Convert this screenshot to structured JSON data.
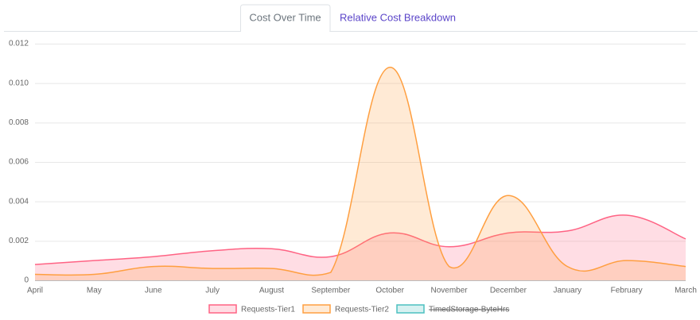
{
  "tabs": [
    "Cost Over Time",
    "Relative Cost Breakdown"
  ],
  "chart_data": {
    "type": "line",
    "area": true,
    "smooth": true,
    "categories": [
      "April",
      "May",
      "June",
      "July",
      "August",
      "September",
      "October",
      "November",
      "December",
      "January",
      "February",
      "March"
    ],
    "series": [
      {
        "name": "Requests-Tier1",
        "color": "#ff6384",
        "values": [
          0.0008,
          0.001,
          0.0012,
          0.0015,
          0.0016,
          0.0012,
          0.0024,
          0.0017,
          0.0024,
          0.0025,
          0.0033,
          0.0021
        ]
      },
      {
        "name": "Requests-Tier2",
        "color": "#ff9f40",
        "values": [
          0.0003,
          0.0003,
          0.0007,
          0.0006,
          0.0006,
          0.0004,
          0.0108,
          0.0007,
          0.0043,
          0.0007,
          0.001,
          0.0007
        ]
      },
      {
        "name": "TimedStorage-ByteHrs",
        "color": "#4bc0c0",
        "hidden": true
      }
    ],
    "ylim": [
      0,
      0.012
    ],
    "yticks": [
      0,
      0.002,
      0.004,
      0.006,
      0.008,
      {
        "value": 0.01,
        "label": "0.010"
      },
      0.012
    ],
    "grid": true,
    "legend": "bottom"
  }
}
